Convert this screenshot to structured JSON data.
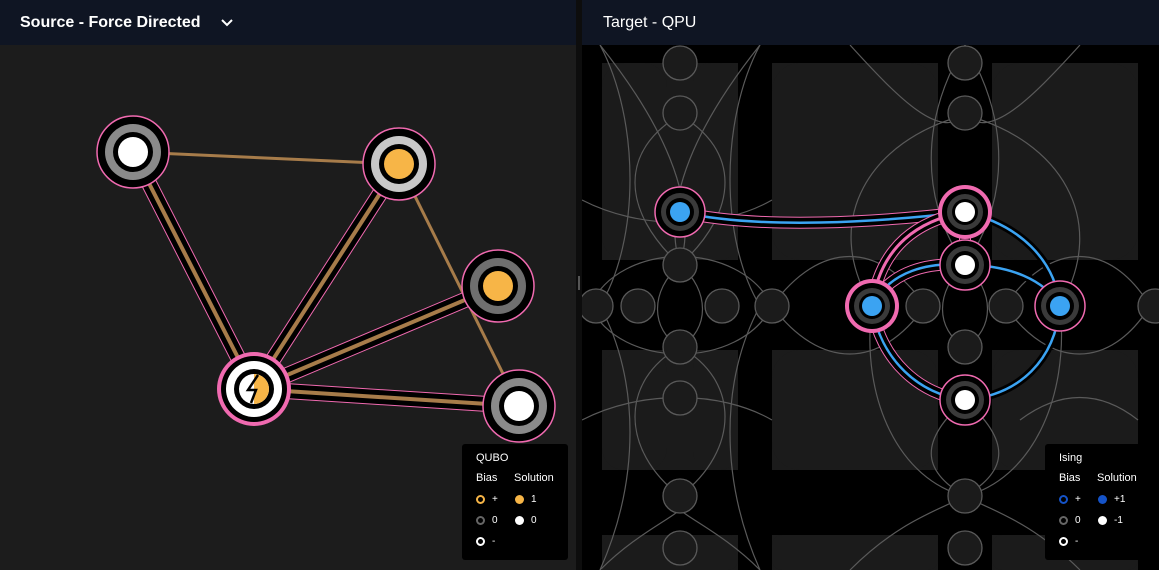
{
  "left": {
    "title": "Source - Force Directed",
    "legend": {
      "title": "QUBO",
      "bias_header": "Bias",
      "solution_header": "Solution",
      "bias_rows": [
        "+",
        "0",
        "-"
      ],
      "solution_rows": [
        "1",
        "0"
      ]
    }
  },
  "right": {
    "title": "Target - QPU",
    "legend": {
      "title": "Ising",
      "bias_header": "Bias",
      "solution_header": "Solution",
      "bias_rows": [
        "+",
        "0",
        "-"
      ],
      "solution_rows": [
        "+1",
        "-1"
      ]
    }
  },
  "colors": {
    "header_bg": "#0f1523",
    "panel_bg": "#1c1c1c",
    "edge_brown": "#a77c4a",
    "highlight_pink": "#f06ab0",
    "solution_orange": "#f7b547",
    "ising_blue": "#3ba3f2",
    "ising_bias_blue": "#1553c8",
    "ring_gray": "#8a8a8a"
  },
  "icons": {
    "dropdown": "chevron-down-icon",
    "selected_node_glyph": "lightning-icon"
  }
}
